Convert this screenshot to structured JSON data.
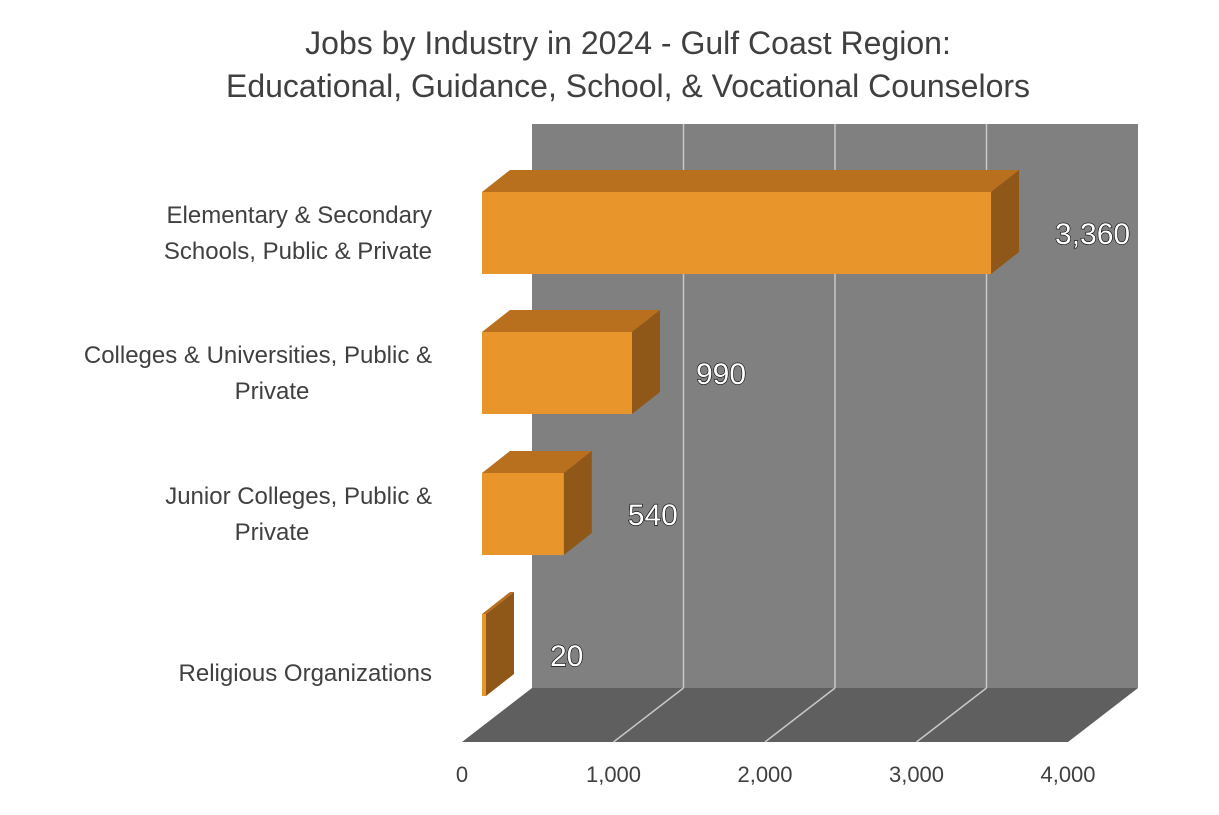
{
  "chart_data": {
    "type": "bar",
    "orientation": "horizontal",
    "title_lines": [
      "Jobs by Industry in 2024 - Gulf Coast Region:",
      "Educational, Guidance, School, & Vocational Counselors"
    ],
    "categories": [
      "Elementary & Secondary Schools, Public & Private",
      "Colleges & Universities, Public & Private",
      "Junior Colleges, Public & Private",
      "Religious Organizations"
    ],
    "category_label_lines": [
      [
        "Elementary & Secondary",
        "Schools, Public & Private"
      ],
      [
        "Colleges & Universities, Public &",
        "Private"
      ],
      [
        "Junior Colleges, Public &",
        "Private"
      ],
      [
        "Religious Organizations"
      ]
    ],
    "values": [
      3360,
      990,
      540,
      20
    ],
    "data_labels": [
      "3,360",
      "990",
      "540",
      "20"
    ],
    "x_ticks": [
      0,
      1000,
      2000,
      3000,
      4000
    ],
    "x_tick_labels": [
      "0",
      "1,000",
      "2,000",
      "3,000",
      "4,000"
    ],
    "xlim": [
      0,
      4000
    ],
    "grid": true,
    "legend": "none",
    "colors": {
      "bar_front": "#E8952B",
      "bar_top": "#B86F1E",
      "bar_side": "#8F5818",
      "back_wall": "#808080",
      "floor": "#5F5F5F",
      "gridline": "#C8C8C8"
    }
  }
}
